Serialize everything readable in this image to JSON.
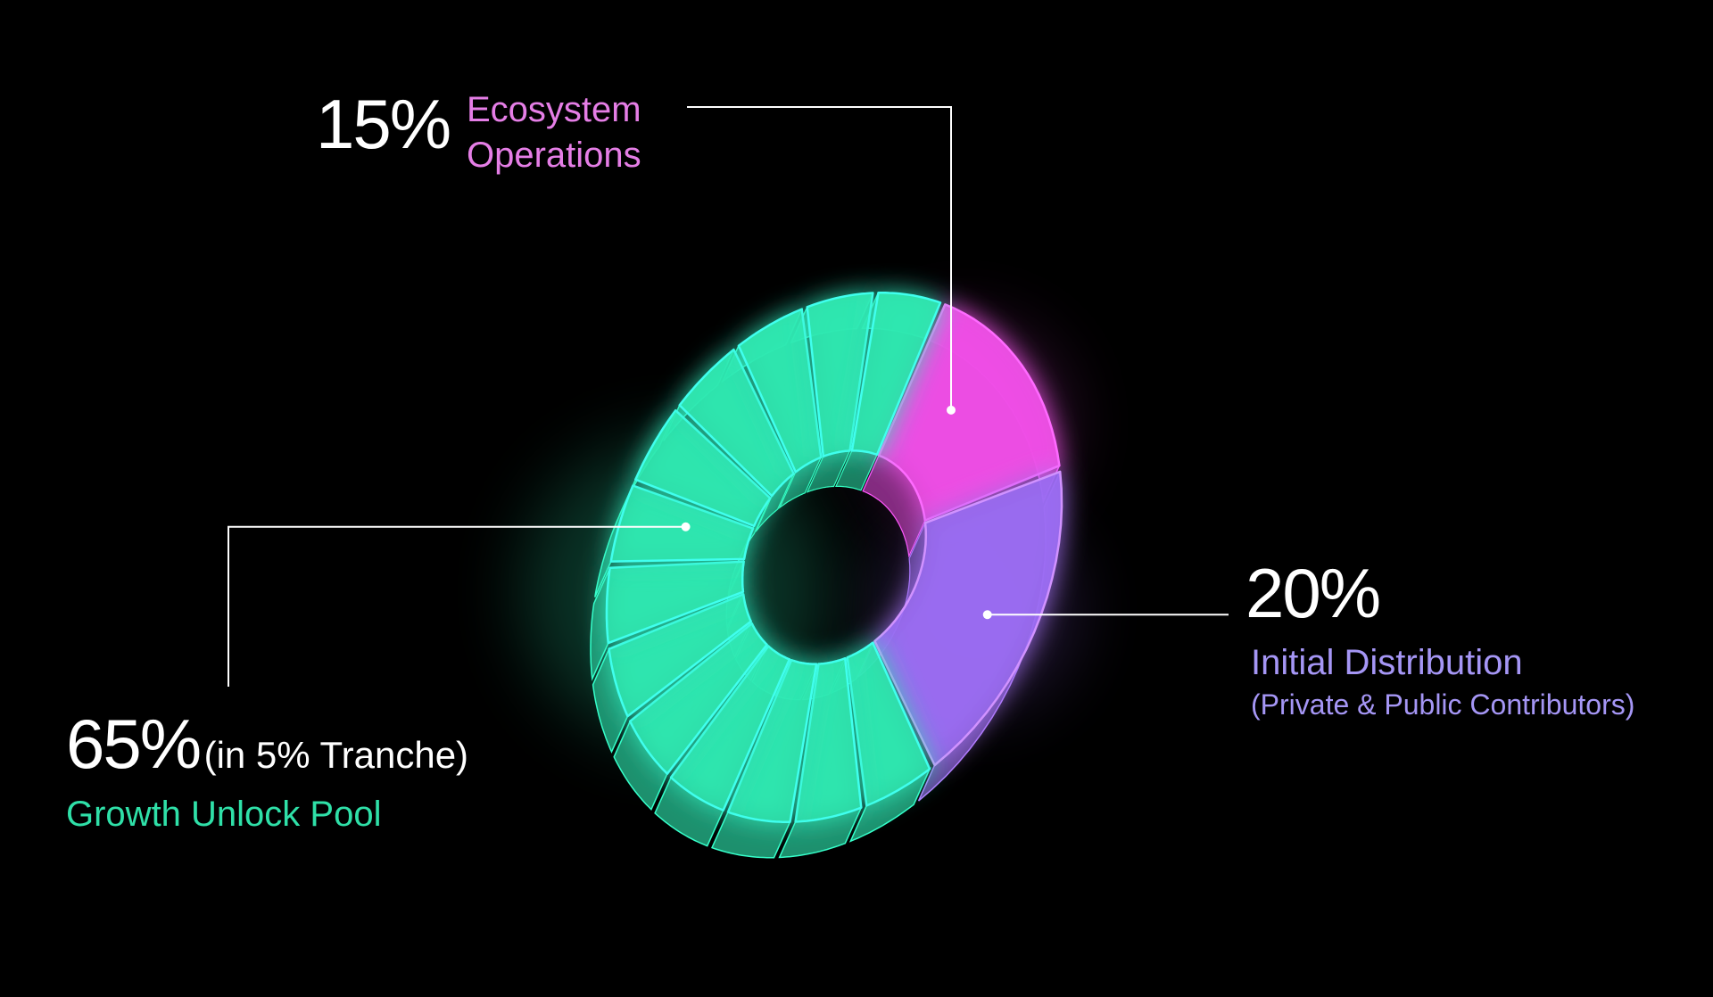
{
  "chart_data": {
    "type": "pie",
    "style": "3D donut",
    "slices": [
      {
        "percent_label": "15%",
        "value": 15,
        "label_lines": [
          "Ecosystem",
          "Operations"
        ],
        "color": "#ef4fe6"
      },
      {
        "percent_label": "20%",
        "value": 20,
        "label_lines": [
          "Initial Distribution"
        ],
        "sublabel": "(Private & Public Contributors)",
        "color": "#9b6cf2"
      },
      {
        "percent_label": "65%",
        "value": 65,
        "note": "(in 5% Tranche)",
        "label_lines": [
          "Growth Unlock Pool"
        ],
        "color": "#2fe8b0",
        "tranche_size": 5,
        "tranche_count": 13
      }
    ]
  },
  "colors": {
    "background": "#000000",
    "percent_text": "#ffffff",
    "leader_line": "#ffffff",
    "ecosystem_label": "#e57ee6",
    "distribution_label": "#a596f5",
    "growth_label": "#2fe0a8"
  }
}
